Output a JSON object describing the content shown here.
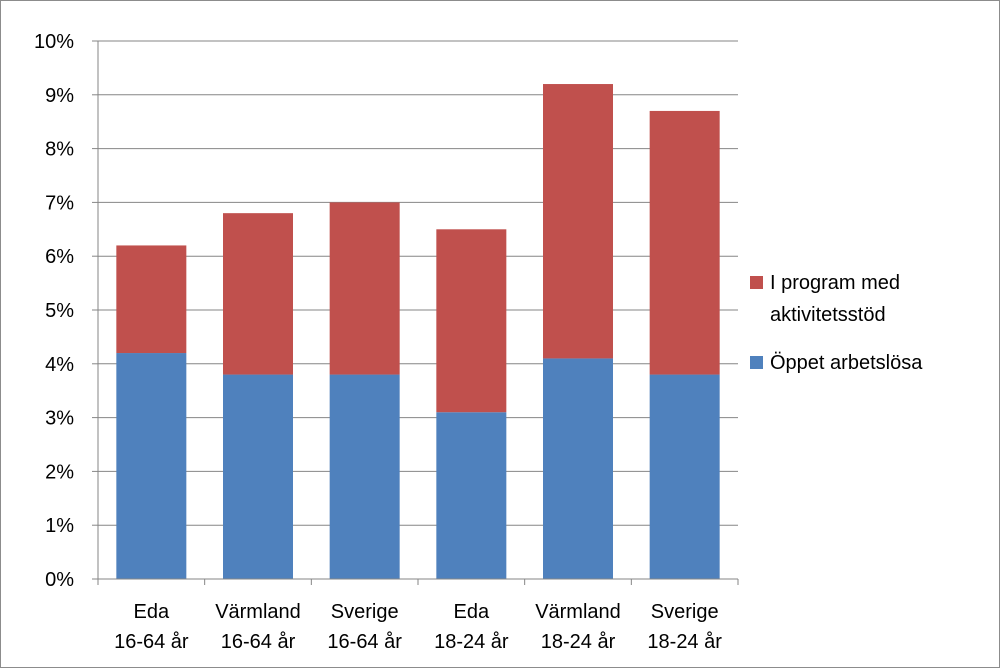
{
  "chart_data": {
    "type": "bar",
    "stacked": true,
    "categories": [
      [
        "Eda",
        "16-64 år"
      ],
      [
        "Värmland",
        "16-64 år"
      ],
      [
        "Sverige",
        "16-64 år"
      ],
      [
        "Eda",
        "18-24 år"
      ],
      [
        "Värmland",
        "18-24 år"
      ],
      [
        "Sverige",
        "18-24 år"
      ]
    ],
    "series": [
      {
        "name": "Öppet arbetslösa",
        "color": "#4f81bd",
        "values": [
          4.2,
          3.8,
          3.8,
          3.1,
          4.1,
          3.8
        ]
      },
      {
        "name": "I program med aktivitetsstöd",
        "color": "#c0504d",
        "values": [
          2.0,
          3.0,
          3.2,
          3.4,
          5.1,
          4.9
        ]
      }
    ],
    "ylim": [
      0,
      10
    ],
    "yticks": [
      "0%",
      "1%",
      "2%",
      "3%",
      "4%",
      "5%",
      "6%",
      "7%",
      "8%",
      "9%",
      "10%"
    ],
    "grid": true,
    "legend": {
      "position": "right",
      "entries": [
        {
          "lines": [
            "I program med",
            "aktivitetsstöd"
          ],
          "color": "#c0504d"
        },
        {
          "lines": [
            "Öppet arbetslösa"
          ],
          "color": "#4f81bd"
        }
      ]
    },
    "colors": {
      "gridline": "#868686",
      "axis": "#868686"
    }
  }
}
